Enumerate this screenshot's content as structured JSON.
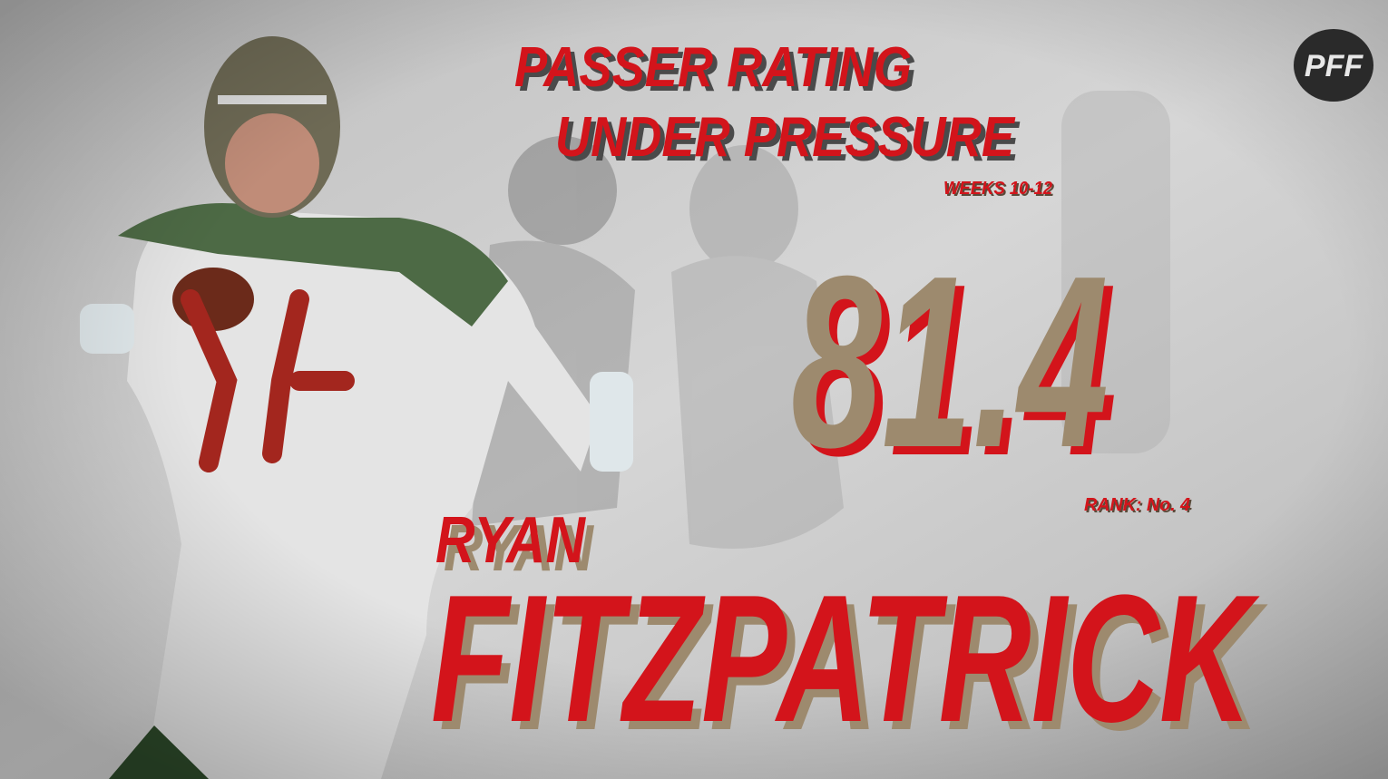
{
  "header": {
    "title_line_1": "PASSER RATING",
    "title_line_2": "UNDER PRESSURE",
    "subtitle": "WEEKS 10-12"
  },
  "stat": {
    "value": 81.4,
    "rank": "RANK: No. 4"
  },
  "player": {
    "first_name": "RYAN",
    "last_name": "FITZPATRICK"
  },
  "logo": "PFF"
}
